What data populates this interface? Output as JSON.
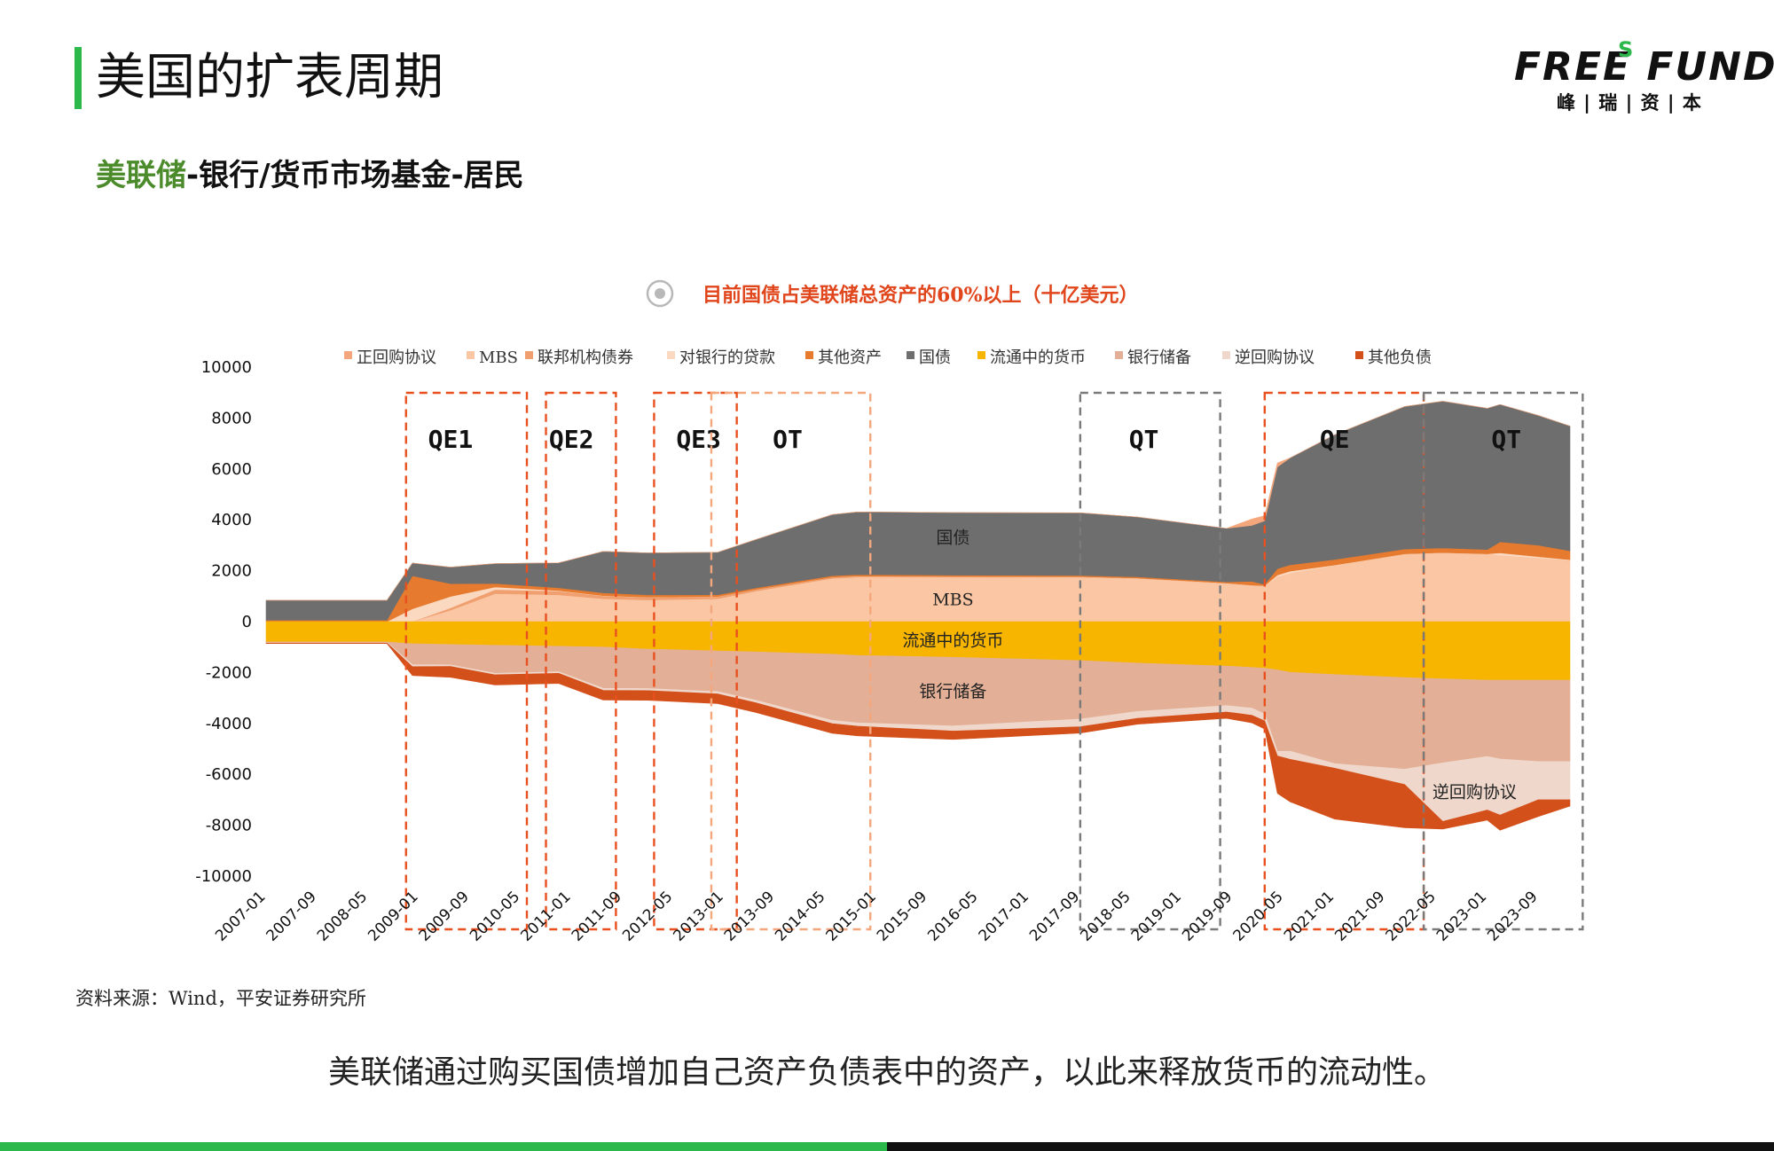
{
  "page": {
    "title": "美国的扩表周期",
    "subtitle_highlight": "美联储",
    "subtitle_rest": "-银行/货币市场基金-居民",
    "logo_main": "FREE FUND",
    "logo_s": "S",
    "logo_sub": "峰 | 瑞 | 资 | 本",
    "source": "资料来源：Wind，平安证券研究所",
    "caption": "美联储通过购买国债增加自己资产负债表中的资产，以此来释放货币的流动性。",
    "colors": {
      "accent_green": "#2db84b",
      "subtitle_green": "#4c8b2b",
      "chart_title_red": "#e0451b"
    }
  },
  "chart_data": {
    "type": "area",
    "title": "目前国债占美联储总资产的60%以上（十亿美元）",
    "ylim": [
      -10000,
      10000
    ],
    "yticks": [
      10000,
      8000,
      6000,
      4000,
      2000,
      0,
      -2000,
      -4000,
      -6000,
      -8000,
      -10000
    ],
    "x_tick_labels": [
      "2007-01",
      "2007-09",
      "2008-05",
      "2009-01",
      "2009-09",
      "2010-05",
      "2011-01",
      "2011-09",
      "2012-05",
      "2013-01",
      "2013-09",
      "2014-05",
      "2015-01",
      "2015-09",
      "2016-05",
      "2017-01",
      "2017-09",
      "2018-05",
      "2019-01",
      "2019-09",
      "2020-05",
      "2021-01",
      "2021-09",
      "2022-05",
      "2023-01",
      "2023-09"
    ],
    "x_start": "2007-01",
    "x_end": "2024-02",
    "legend": [
      "正回购协议",
      "MBS",
      "联邦机构债券",
      "对银行的贷款",
      "其他资产",
      "国债",
      "流通中的货币",
      "银行储备",
      "逆回购协议",
      "其他负债"
    ],
    "legend_colors": [
      "#f4a77c",
      "#fbc6a3",
      "#f0a070",
      "#fbd8c0",
      "#e67a2e",
      "#6e6e6e",
      "#f7b500",
      "#e3b097",
      "#efd8cb",
      "#d4501b"
    ],
    "series_labels": [
      "国债",
      "MBS",
      "流通中的货币",
      "银行储备",
      "逆回购协议"
    ],
    "assets": {
      "dates": [
        "2007-01",
        "2008-08",
        "2008-12",
        "2009-06",
        "2010-01",
        "2010-11",
        "2011-06",
        "2012-01",
        "2012-12",
        "2013-06",
        "2014-06",
        "2014-10",
        "2016-01",
        "2017-09",
        "2018-06",
        "2019-08",
        "2019-12",
        "2020-02",
        "2020-04",
        "2020-06",
        "2021-01",
        "2021-12",
        "2022-06",
        "2023-01",
        "2023-03",
        "2023-09",
        "2024-02"
      ],
      "MBS": [
        0,
        0,
        0,
        450,
        1100,
        1050,
        900,
        850,
        900,
        1200,
        1700,
        1750,
        1750,
        1750,
        1700,
        1500,
        1420,
        1400,
        1750,
        1900,
        2200,
        2650,
        2700,
        2650,
        2600,
        2500,
        2400
      ],
      "联邦机构债券": [
        0,
        0,
        0,
        90,
        160,
        150,
        110,
        100,
        80,
        60,
        40,
        35,
        20,
        10,
        5,
        3,
        2,
        2,
        2,
        2,
        2,
        2,
        2,
        2,
        2,
        2,
        2
      ],
      "对银行的贷款": [
        0,
        0,
        500,
        450,
        100,
        20,
        10,
        10,
        5,
        5,
        5,
        5,
        5,
        5,
        5,
        10,
        10,
        10,
        80,
        80,
        20,
        10,
        10,
        10,
        100,
        50,
        30
      ],
      "其他资产": [
        60,
        60,
        1300,
        500,
        140,
        110,
        110,
        90,
        70,
        60,
        60,
        60,
        50,
        50,
        50,
        50,
        150,
        50,
        250,
        250,
        220,
        190,
        180,
        170,
        430,
        450,
        350
      ],
      "国债": [
        780,
        780,
        500,
        650,
        780,
        980,
        1630,
        1650,
        1670,
        1900,
        2400,
        2460,
        2460,
        2460,
        2350,
        2100,
        2200,
        2500,
        4000,
        4200,
        4900,
        5600,
        5770,
        5550,
        5400,
        5100,
        4900
      ],
      "正回购协议": [
        0,
        0,
        0,
        0,
        0,
        0,
        0,
        0,
        0,
        0,
        0,
        0,
        0,
        0,
        0,
        0,
        250,
        200,
        150,
        0,
        0,
        0,
        0,
        0,
        0,
        0,
        0
      ],
      "流通中的货币": [
        800,
        800,
        870,
        900,
        930,
        970,
        1000,
        1080,
        1150,
        1190,
        1280,
        1330,
        1400,
        1530,
        1630,
        1750,
        1800,
        1830,
        1900,
        1990,
        2080,
        2200,
        2250,
        2300,
        2300,
        2300,
        2300
      ],
      "银行储备": [
        10,
        10,
        820,
        800,
        1100,
        1000,
        1620,
        1550,
        1600,
        1900,
        2600,
        2650,
        2700,
        2300,
        1900,
        1550,
        1600,
        1800,
        3200,
        3100,
        3500,
        3600,
        3300,
        3000,
        3100,
        3200,
        3200
      ],
      "逆回购协议": [
        30,
        30,
        80,
        60,
        60,
        60,
        80,
        80,
        90,
        100,
        130,
        130,
        200,
        300,
        270,
        250,
        280,
        270,
        180,
        320,
        180,
        600,
        2300,
        2100,
        2200,
        1500,
        1500
      ],
      "其他负债": [
        20,
        20,
        350,
        430,
        400,
        400,
        380,
        380,
        380,
        380,
        380,
        380,
        330,
        250,
        230,
        250,
        300,
        320,
        1470,
        1670,
        2000,
        1700,
        300,
        400,
        600,
        660,
        250
      ]
    }
  }
}
